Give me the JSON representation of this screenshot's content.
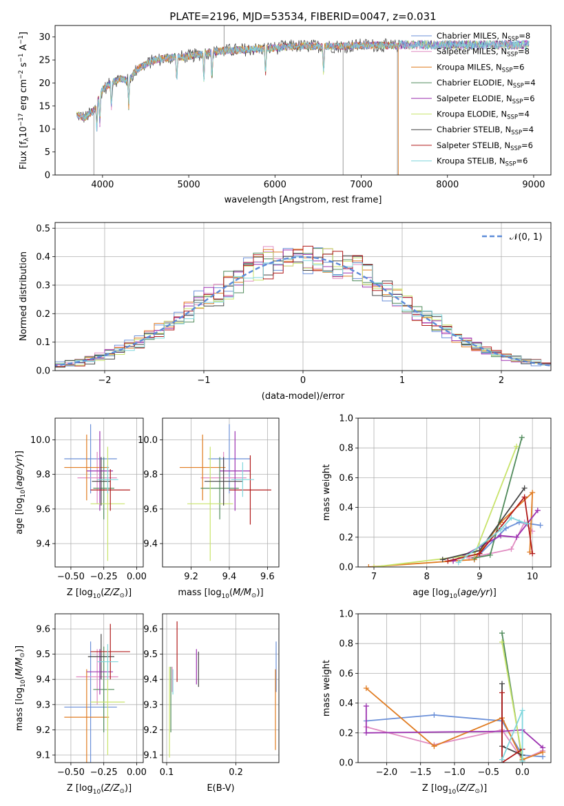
{
  "title": "PLATE=2196, MJD=53534, FIBERID=0047, z=0.031",
  "models": [
    {
      "name": "Chabrier MILES",
      "n": "8",
      "color": "#6a8fd8"
    },
    {
      "name": "Salpeter MILES",
      "n": "8",
      "color": "#e08ac0"
    },
    {
      "name": "Kroupa MILES",
      "n": "6",
      "color": "#e07b20"
    },
    {
      "name": "Chabrier ELODIE",
      "n": "4",
      "color": "#4f8a5a"
    },
    {
      "name": "Salpeter ELODIE",
      "n": "6",
      "color": "#9b30b0"
    },
    {
      "name": "Kroupa ELODIE",
      "n": "4",
      "color": "#c8e36a"
    },
    {
      "name": "Chabrier STELIB",
      "n": "4",
      "color": "#444444"
    },
    {
      "name": "Salpeter STELIB",
      "n": "6",
      "color": "#b01818"
    },
    {
      "name": "Kroupa STELIB",
      "n": "6",
      "color": "#7fd6dc"
    }
  ],
  "legend_nssp_label": "N",
  "legend_nssp_sub": "SSP",
  "chart_data": [
    {
      "id": "spectrum",
      "type": "line",
      "xlabel": "wavelength [Angstrom, rest frame]",
      "ylabel": "Flux [f",
      "ylabel_parts": [
        "Flux [f",
        "λ",
        "10",
        "−17",
        " erg cm",
        "−2",
        " s",
        "−1",
        " A",
        "−1",
        "]"
      ],
      "xlim": [
        3450,
        9200
      ],
      "ylim": [
        0,
        32.5
      ],
      "xticks": [
        4000,
        5000,
        6000,
        7000,
        8000,
        9000
      ],
      "yticks": [
        0,
        5,
        10,
        15,
        20,
        25,
        30
      ],
      "grid": false,
      "legend": "top-right",
      "continuum": [
        [
          3700,
          13.0
        ],
        [
          3800,
          12.5
        ],
        [
          3900,
          14.0
        ],
        [
          4000,
          18.5
        ],
        [
          4100,
          20.0
        ],
        [
          4200,
          21.0
        ],
        [
          4300,
          20.5
        ],
        [
          4400,
          23.0
        ],
        [
          4600,
          25.0
        ],
        [
          4800,
          25.5
        ],
        [
          5000,
          25.8
        ],
        [
          5200,
          26.5
        ],
        [
          5400,
          27.0
        ],
        [
          5600,
          27.2
        ],
        [
          5800,
          27.4
        ],
        [
          6000,
          27.6
        ],
        [
          6200,
          28.0
        ],
        [
          6400,
          28.0
        ],
        [
          6600,
          28.0
        ],
        [
          6800,
          28.0
        ],
        [
          7000,
          28.2
        ],
        [
          7200,
          28.2
        ],
        [
          7400,
          28.0
        ]
      ]
    },
    {
      "id": "residuals",
      "type": "bar",
      "xlabel": "(data-model)/error",
      "ylabel": "Normed distribution",
      "xlim": [
        -2.5,
        2.5
      ],
      "ylim": [
        0,
        0.52
      ],
      "xticks": [
        -2,
        -1,
        0,
        1,
        2
      ],
      "xtick_labels": [
        "−2",
        "−1",
        "0",
        "1",
        "2"
      ],
      "yticks": [
        0.0,
        0.1,
        0.2,
        0.3,
        0.4,
        0.5
      ],
      "grid": true,
      "bin_width": 0.1,
      "gaussian_label": "𝒩(0, 1)",
      "gaussian_color": "#5b8ad8",
      "legend": "top-right"
    },
    {
      "id": "age_vs_Z",
      "type": "scatter",
      "xlabel": "Z [log10(Z/Z⊙)]",
      "ylabel": "age [log10(age/yr)]",
      "xlim": [
        -0.62,
        0.05
      ],
      "ylim": [
        9.265,
        10.125
      ],
      "xticks": [
        -0.5,
        -0.25,
        0.0
      ],
      "xtick_labels": [
        "−0.50",
        "−0.25",
        "0.00"
      ],
      "yticks": [
        9.4,
        9.6,
        9.8,
        10.0
      ],
      "grid": true,
      "points": [
        {
          "model": 0,
          "x": -0.35,
          "xerr": 0.2,
          "y": 9.89,
          "yerr": 0.2
        },
        {
          "model": 1,
          "x": -0.3,
          "xerr": 0.15,
          "y": 9.78,
          "yerr": 0.15
        },
        {
          "model": 2,
          "x": -0.38,
          "xerr": 0.17,
          "y": 9.84,
          "yerr": 0.19
        },
        {
          "model": 3,
          "x": -0.25,
          "xerr": 0.08,
          "y": 9.72,
          "yerr": 0.18
        },
        {
          "model": 4,
          "x": -0.28,
          "xerr": 0.1,
          "y": 9.82,
          "yerr": 0.23
        },
        {
          "model": 5,
          "x": -0.22,
          "xerr": 0.13,
          "y": 9.63,
          "yerr": 0.33
        },
        {
          "model": 6,
          "x": -0.27,
          "xerr": 0.07,
          "y": 9.76,
          "yerr": 0.14
        },
        {
          "model": 7,
          "x": -0.2,
          "xerr": 0.15,
          "y": 9.71,
          "yerr": 0.12
        },
        {
          "model": 8,
          "x": -0.22,
          "xerr": 0.08,
          "y": 9.77,
          "yerr": 0.08
        }
      ]
    },
    {
      "id": "age_vs_mass",
      "type": "scatter",
      "xlabel": "mass [log10(M/M⊙)]",
      "ylabel": "",
      "xlim": [
        9.05,
        9.66
      ],
      "ylim": [
        9.265,
        10.125
      ],
      "xticks": [
        9.2,
        9.4,
        9.6
      ],
      "yticks": [
        9.4,
        9.6,
        9.8,
        10.0
      ],
      "grid": true,
      "points": [
        {
          "model": 0,
          "x": 9.4,
          "xerr": 0.11,
          "y": 9.89,
          "yerr": 0.2
        },
        {
          "model": 1,
          "x": 9.37,
          "xerr": 0.12,
          "y": 9.78,
          "yerr": 0.15
        },
        {
          "model": 2,
          "x": 9.26,
          "xerr": 0.12,
          "y": 9.84,
          "yerr": 0.19
        },
        {
          "model": 3,
          "x": 9.35,
          "xerr": 0.1,
          "y": 9.72,
          "yerr": 0.18
        },
        {
          "model": 4,
          "x": 9.43,
          "xerr": 0.08,
          "y": 9.82,
          "yerr": 0.23
        },
        {
          "model": 5,
          "x": 9.3,
          "xerr": 0.12,
          "y": 9.63,
          "yerr": 0.33
        },
        {
          "model": 6,
          "x": 9.37,
          "xerr": 0.1,
          "y": 9.76,
          "yerr": 0.14
        },
        {
          "model": 7,
          "x": 9.51,
          "xerr": 0.11,
          "y": 9.71,
          "yerr": 0.2
        },
        {
          "model": 8,
          "x": 9.47,
          "xerr": 0.06,
          "y": 9.77,
          "yerr": 0.1
        }
      ]
    },
    {
      "id": "weight_vs_age",
      "type": "line",
      "xlabel": "age [log10(age/yr)]",
      "ylabel": "mass weight",
      "xlim": [
        6.7,
        10.35
      ],
      "ylim": [
        0,
        1.0
      ],
      "xticks": [
        7,
        8,
        9,
        10
      ],
      "yticks": [
        0.0,
        0.2,
        0.4,
        0.6,
        0.8,
        1.0
      ],
      "grid": true,
      "series": [
        {
          "model": 0,
          "x": [
            8.9,
            9.5,
            9.75,
            10.15
          ],
          "y": [
            0.05,
            0.26,
            0.3,
            0.28
          ]
        },
        {
          "model": 1,
          "x": [
            8.8,
            9.6,
            9.85,
            10.0
          ],
          "y": [
            0.06,
            0.12,
            0.3,
            0.24
          ]
        },
        {
          "model": 2,
          "x": [
            6.9,
            8.9,
            9.4,
            10.0,
            9.95
          ],
          "y": [
            0.0,
            0.05,
            0.3,
            0.5,
            0.1
          ]
        },
        {
          "model": 3,
          "x": [
            8.9,
            9.2,
            9.8
          ],
          "y": [
            0.06,
            0.08,
            0.87
          ]
        },
        {
          "model": 4,
          "x": [
            8.5,
            9.4,
            9.7,
            10.1
          ],
          "y": [
            0.04,
            0.21,
            0.2,
            0.38
          ]
        },
        {
          "model": 5,
          "x": [
            7.0,
            8.9,
            9.7
          ],
          "y": [
            0.0,
            0.08,
            0.81
          ]
        },
        {
          "model": 6,
          "x": [
            8.3,
            9.0,
            9.85
          ],
          "y": [
            0.05,
            0.11,
            0.53
          ]
        },
        {
          "model": 7,
          "x": [
            8.4,
            9.0,
            9.85,
            10.0
          ],
          "y": [
            0.04,
            0.09,
            0.47,
            0.09
          ]
        },
        {
          "model": 8,
          "x": [
            8.6,
            9.4,
            9.6,
            9.9
          ],
          "y": [
            0.03,
            0.25,
            0.33,
            0.29
          ]
        }
      ]
    },
    {
      "id": "mass_vs_Z",
      "type": "scatter",
      "xlabel": "Z [log10(Z/Z⊙)]",
      "ylabel": "mass [log10(M/M⊙)]",
      "xlim": [
        -0.62,
        0.05
      ],
      "ylim": [
        9.07,
        9.66
      ],
      "xticks": [
        -0.5,
        -0.25,
        0.0
      ],
      "xtick_labels": [
        "−0.50",
        "−0.25",
        "0.00"
      ],
      "yticks": [
        9.1,
        9.2,
        9.3,
        9.4,
        9.5,
        9.6
      ],
      "grid": true,
      "points": [
        {
          "model": 0,
          "x": -0.35,
          "xerr": 0.2,
          "y": 9.29,
          "yerr": 0.26
        },
        {
          "model": 1,
          "x": -0.3,
          "xerr": 0.16,
          "y": 9.41,
          "yerr": 0.11
        },
        {
          "model": 2,
          "x": -0.38,
          "xerr": 0.17,
          "y": 9.25,
          "yerr": 0.19
        },
        {
          "model": 3,
          "x": -0.25,
          "xerr": 0.08,
          "y": 9.36,
          "yerr": 0.17
        },
        {
          "model": 4,
          "x": -0.28,
          "xerr": 0.1,
          "y": 9.43,
          "yerr": 0.09
        },
        {
          "model": 5,
          "x": -0.22,
          "xerr": 0.13,
          "y": 9.31,
          "yerr": 0.21
        },
        {
          "model": 6,
          "x": -0.27,
          "xerr": 0.1,
          "y": 9.49,
          "yerr": 0.09
        },
        {
          "model": 7,
          "x": -0.2,
          "xerr": 0.15,
          "y": 9.51,
          "yerr": 0.11
        },
        {
          "model": 8,
          "x": -0.22,
          "xerr": 0.08,
          "y": 9.47,
          "yerr": 0.07
        }
      ]
    },
    {
      "id": "mass_vs_ebv",
      "type": "scatter",
      "xlabel": "E(B-V)",
      "ylabel": "",
      "xlim": [
        0.094,
        0.262
      ],
      "ylim": [
        9.07,
        9.66
      ],
      "xticks": [
        0.1,
        0.2
      ],
      "yticks": [
        9.1,
        9.2,
        9.3,
        9.4,
        9.5,
        9.6
      ],
      "grid": true,
      "points": [
        {
          "model": 0,
          "x": 0.258,
          "xerr": 0.0,
          "y": 9.45,
          "yerr": 0.1
        },
        {
          "model": 1,
          "x": 0.108,
          "xerr": 0.0,
          "y": 9.4,
          "yerr": 0.05
        },
        {
          "model": 2,
          "x": 0.257,
          "xerr": 0.0,
          "y": 9.28,
          "yerr": 0.16
        },
        {
          "model": 3,
          "x": 0.106,
          "xerr": 0.0,
          "y": 9.32,
          "yerr": 0.13
        },
        {
          "model": 4,
          "x": 0.143,
          "xerr": 0.0,
          "y": 9.45,
          "yerr": 0.07
        },
        {
          "model": 5,
          "x": 0.104,
          "xerr": 0.0,
          "y": 9.27,
          "yerr": 0.18
        },
        {
          "model": 6,
          "x": 0.146,
          "xerr": 0.0,
          "y": 9.44,
          "yerr": 0.07
        },
        {
          "model": 7,
          "x": 0.115,
          "xerr": 0.0,
          "y": 9.51,
          "yerr": 0.12
        },
        {
          "model": 8,
          "x": 0.109,
          "xerr": 0.0,
          "y": 9.39,
          "yerr": 0.05
        }
      ]
    },
    {
      "id": "weight_vs_Z",
      "type": "line",
      "xlabel": "Z [log10(Z/Z⊙)]",
      "ylabel": "mass weight",
      "xlim": [
        -2.42,
        0.42
      ],
      "ylim": [
        0,
        1.0
      ],
      "xticks": [
        -2.0,
        -1.5,
        -1.0,
        -0.5,
        0.0
      ],
      "xtick_labels": [
        "−2.0",
        "−1.5",
        "−1.0",
        "−0.5",
        "0.0"
      ],
      "yticks": [
        0.0,
        0.2,
        0.4,
        0.6,
        0.8,
        1.0
      ],
      "grid": true,
      "series": [
        {
          "model": 0,
          "x": [
            -2.3,
            -1.3,
            -0.3,
            0.0,
            0.3
          ],
          "y": [
            0.28,
            0.32,
            0.28,
            0.05,
            0.04
          ]
        },
        {
          "model": 1,
          "x": [
            -2.3,
            -1.3,
            -0.3,
            0.0,
            0.3
          ],
          "y": [
            0.24,
            0.12,
            0.22,
            0.02,
            0.08
          ]
        },
        {
          "model": 2,
          "x": [
            -2.3,
            -1.3,
            -0.3,
            0.0,
            0.3
          ],
          "y": [
            0.5,
            0.11,
            0.3,
            0.02,
            0.07
          ]
        },
        {
          "model": 3,
          "x": [
            -0.3,
            0.0
          ],
          "y": [
            0.87,
            0.01
          ]
        },
        {
          "model": 4,
          "x": [
            -2.3,
            -2.3,
            -0.3,
            0.0,
            0.3
          ],
          "y": [
            0.38,
            0.2,
            0.21,
            0.22,
            0.1
          ]
        },
        {
          "model": 5,
          "x": [
            -0.3,
            0.0
          ],
          "y": [
            0.81,
            0.03
          ]
        },
        {
          "model": 6,
          "x": [
            -0.3,
            -0.3,
            0.0
          ],
          "y": [
            0.53,
            0.11,
            0.05
          ]
        },
        {
          "model": 7,
          "x": [
            -0.3,
            -0.3,
            0.0
          ],
          "y": [
            0.47,
            0.0,
            0.09
          ]
        },
        {
          "model": 8,
          "x": [
            -0.3,
            0.0,
            0.0
          ],
          "y": [
            0.02,
            0.35,
            0.01
          ]
        }
      ]
    }
  ]
}
